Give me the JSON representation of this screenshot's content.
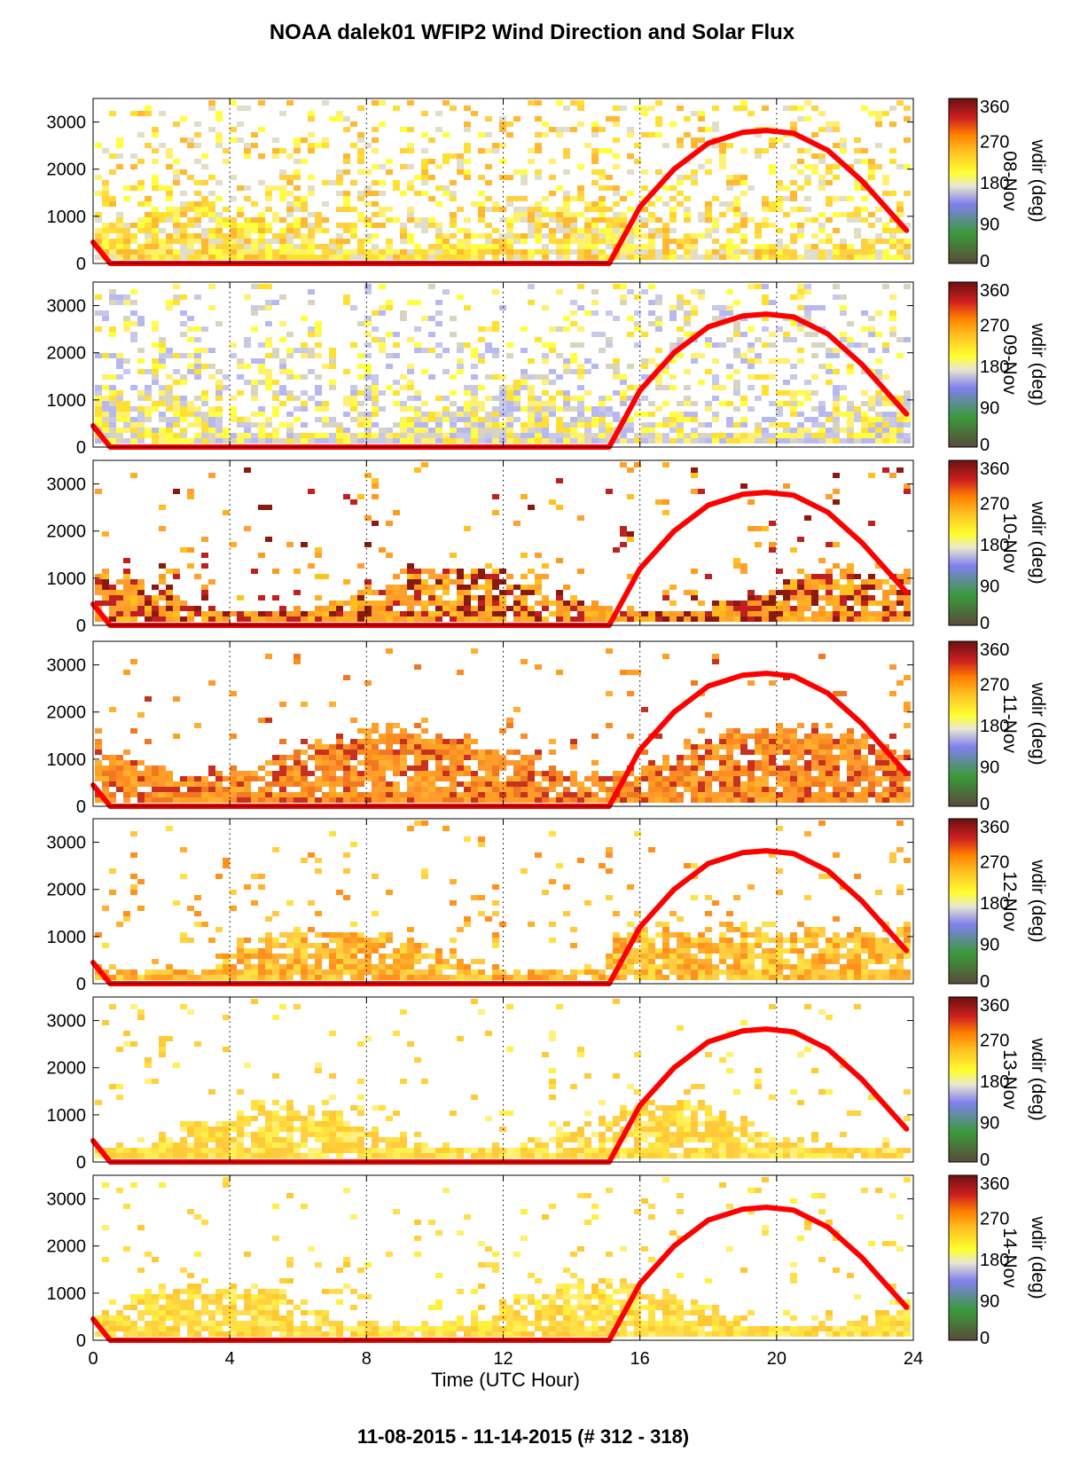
{
  "title": "NOAA dalek01 WFIP2 Wind Direction and Solar Flux",
  "footer": "11-08-2015 - 11-14-2015    (# 312 - 318)",
  "xlabel": "Time (UTC Hour)",
  "colorbar": {
    "label": "wdir (deg)",
    "ticks": [
      "0",
      "90",
      "180",
      "270",
      "360"
    ]
  },
  "chart_data": {
    "type": "heatmap",
    "xlabel": "Time (UTC Hour)",
    "x_ticks": [
      0,
      4,
      8,
      12,
      16,
      20,
      24
    ],
    "xlim": [
      0,
      24
    ],
    "y_ticks": [
      0,
      1000,
      2000,
      3000
    ],
    "ylim": [
      0,
      3500
    ],
    "value_label": "wdir (deg)",
    "value_range": [
      0,
      360
    ],
    "panels": [
      {
        "date": "08-Nov"
      },
      {
        "date": "09-Nov"
      },
      {
        "date": "10-Nov"
      },
      {
        "date": "11-Nov"
      },
      {
        "date": "12-Nov"
      },
      {
        "date": "13-Nov"
      },
      {
        "date": "14-Nov"
      }
    ],
    "solar_flux_curve": {
      "color": "#ff0000",
      "x": [
        0,
        0.5,
        15.1,
        16,
        17,
        18,
        19,
        19.7,
        20.5,
        21.5,
        22.5,
        23.8
      ],
      "y": [
        450,
        0,
        0,
        1200,
        2000,
        2550,
        2780,
        2820,
        2760,
        2400,
        1750,
        700
      ]
    },
    "colormap": [
      "#5a4a3a",
      "#3a9a3a",
      "#8080ee",
      "#e8e8d0",
      "#ffff30",
      "#ffc020",
      "#ff8000",
      "#d02020",
      "#6a1010"
    ]
  }
}
